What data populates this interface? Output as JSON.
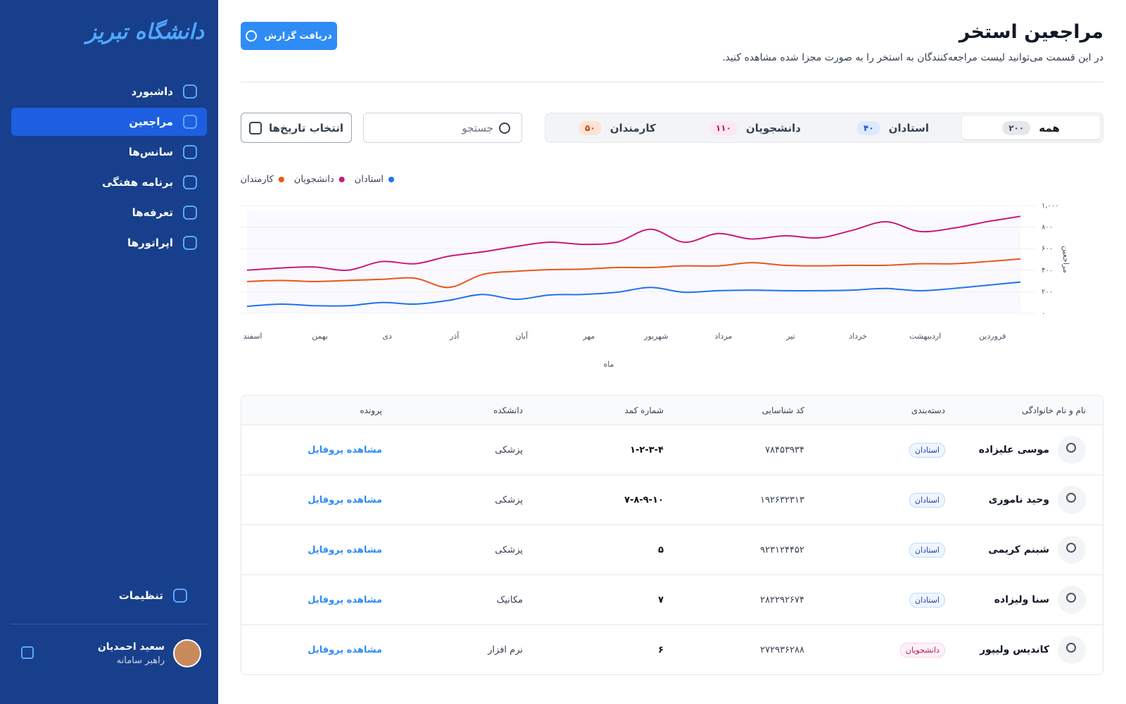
{
  "sidebar": {
    "logo": "دانشگاه تبریز",
    "nav": [
      "داشبورد",
      "مراجعین",
      "سانس‌ها",
      "برنامه هفتگی",
      "تعرفه‌ها",
      "اپراتورها"
    ],
    "settings": "تنظیمات",
    "user": {
      "name": "سعید احمدیان",
      "role": "راهبر سامانه"
    }
  },
  "header": {
    "title": "مراجعین استخر",
    "subtitle": "در این قسمت می‌توانید لیست مراجعه‌کنندگان به استخر را به صورت مجزا شده مشاهده کنید.",
    "report_button": "دریافت گزارش"
  },
  "filters": {
    "tabs": [
      {
        "label": "همه",
        "count": "۲۰۰"
      },
      {
        "label": "استادان",
        "count": "۴۰"
      },
      {
        "label": "دانشجویان",
        "count": "۱۱۰"
      },
      {
        "label": "کارمندان",
        "count": "۵۰"
      }
    ],
    "search_placeholder": "جستجو",
    "date_button": "انتخاب تاریخ‌ها"
  },
  "chart_data": {
    "type": "line",
    "x_label": "ماه",
    "y_label": "مراجعین",
    "categories": [
      null,
      "فروردین",
      null,
      "اردیبهشت",
      null,
      "خرداد",
      null,
      "تیر",
      null,
      "مرداد",
      null,
      "شهریور",
      null,
      "مهر",
      null,
      "آبان",
      null,
      "آذر",
      null,
      "دی",
      null,
      "بهمن",
      null,
      "اسفند"
    ],
    "series": [
      {
        "name": "استادان",
        "color": "#1f74ec",
        "values": [
          290,
          260,
          230,
          210,
          230,
          215,
          210,
          210,
          215,
          210,
          195,
          240,
          195,
          175,
          170,
          130,
          175,
          120,
          85,
          100,
          70,
          70,
          85,
          65
        ]
      },
      {
        "name": "دانشجویان",
        "color": "#c81a78",
        "values": [
          900,
          850,
          790,
          760,
          850,
          770,
          700,
          720,
          690,
          740,
          660,
          780,
          660,
          640,
          660,
          620,
          570,
          530,
          460,
          480,
          400,
          430,
          420,
          400
        ]
      },
      {
        "name": "کارمندان",
        "color": "#e5571c",
        "values": [
          505,
          480,
          460,
          460,
          445,
          445,
          440,
          445,
          470,
          440,
          440,
          425,
          425,
          410,
          405,
          390,
          360,
          240,
          325,
          315,
          305,
          295,
          305,
          295
        ]
      }
    ],
    "ylim": [
      0,
      1000
    ],
    "yticks": [
      {
        "value": 0,
        "label": "۰"
      },
      {
        "value": 200,
        "label": "۲۰۰"
      },
      {
        "value": 400,
        "label": "۴۰۰"
      },
      {
        "value": 600,
        "label": "۶۰۰"
      },
      {
        "value": 800,
        "label": "۸۰۰"
      },
      {
        "value": 1000,
        "label": "۱,۰۰۰"
      }
    ],
    "grid": true
  },
  "table": {
    "headers": [
      "نام و نام خانوادگی",
      "دسته‌بندی",
      "کد شناسایی",
      "شماره کمد",
      "دانشکده",
      "پرونده"
    ],
    "rows": [
      [
        "موسی علیزاده",
        "استادان",
        "۷۸۴۵۳۹۳۴",
        "۱-۲-۳-۴",
        "پزشکی",
        "مشاهده پروفایل"
      ],
      [
        "وحید ناموری",
        "استادان",
        "۱۹۲۶۳۲۳۱۳",
        "۷-۸-۹-۱۰",
        "پزشکی",
        "مشاهده پروفایل"
      ],
      [
        "شبنم کریمی",
        "استادان",
        "۹۲۳۱۲۴۴۵۲",
        "۵",
        "پزشکی",
        "مشاهده پروفایل"
      ],
      [
        "سنا ولیزاده",
        "استادان",
        "۲۸۲۲۹۲۶۷۴",
        "۷",
        "مکانیک",
        "مشاهده پروفایل"
      ],
      [
        "کاندیس ولیپور",
        "دانشجویان",
        "۲۷۲۹۳۶۲۸۸",
        "۶",
        "نرم افزار",
        "مشاهده پروفایل"
      ]
    ]
  }
}
